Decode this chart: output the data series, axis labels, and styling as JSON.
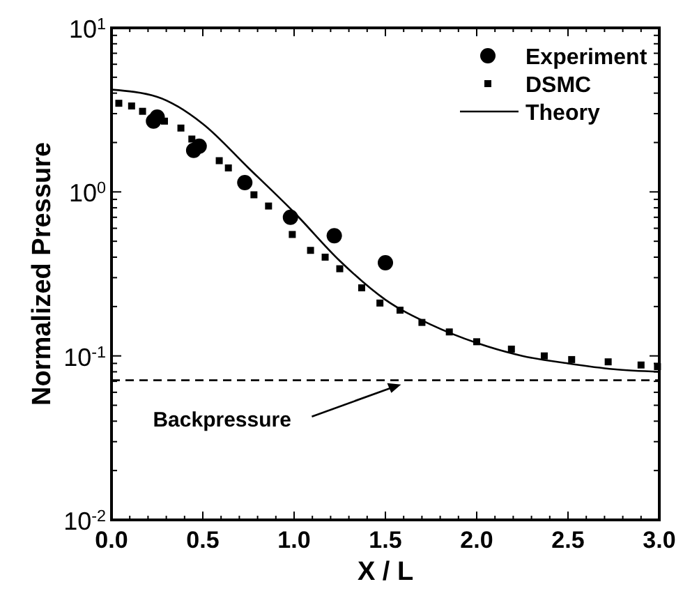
{
  "chart_data": {
    "type": "scatter",
    "xlabel": "X / L",
    "ylabel": "Normalized Pressure",
    "log": "y",
    "legend": "top right",
    "xlim": [
      0,
      3
    ],
    "ylim": [
      0.01,
      10
    ],
    "xticks": [
      {
        "value": 0,
        "label": "0.0"
      },
      {
        "value": 0.1,
        "label": null
      },
      {
        "value": 0.2,
        "label": null
      },
      {
        "value": 0.3,
        "label": null
      },
      {
        "value": 0.4,
        "label": null
      },
      {
        "value": 0.5,
        "label": "0.5"
      },
      {
        "value": 0.6,
        "label": null
      },
      {
        "value": 0.7,
        "label": null
      },
      {
        "value": 0.8,
        "label": null
      },
      {
        "value": 0.9,
        "label": null
      },
      {
        "value": 1,
        "label": "1.0"
      },
      {
        "value": 1.1,
        "label": null
      },
      {
        "value": 1.2,
        "label": null
      },
      {
        "value": 1.3,
        "label": null
      },
      {
        "value": 1.4,
        "label": null
      },
      {
        "value": 1.5,
        "label": "1.5"
      },
      {
        "value": 1.6,
        "label": null
      },
      {
        "value": 1.7,
        "label": null
      },
      {
        "value": 1.8,
        "label": null
      },
      {
        "value": 1.9,
        "label": null
      },
      {
        "value": 2,
        "label": "2.0"
      },
      {
        "value": 2.1,
        "label": null
      },
      {
        "value": 2.2,
        "label": null
      },
      {
        "value": 2.3,
        "label": null
      },
      {
        "value": 2.4,
        "label": null
      },
      {
        "value": 2.5,
        "label": "2.5"
      },
      {
        "value": 2.6,
        "label": null
      },
      {
        "value": 2.7,
        "label": null
      },
      {
        "value": 2.8,
        "label": null
      },
      {
        "value": 2.9,
        "label": null
      },
      {
        "value": 3,
        "label": "3.0"
      }
    ],
    "yticks": [
      {
        "value": 0.01,
        "label": "10$^{-2}$"
      },
      {
        "value": 0.02,
        "label": null
      },
      {
        "value": 0.03,
        "label": null
      },
      {
        "value": 0.04,
        "label": null
      },
      {
        "value": 0.05,
        "label": null
      },
      {
        "value": 0.06,
        "label": null
      },
      {
        "value": 0.07,
        "label": null
      },
      {
        "value": 0.08,
        "label": null
      },
      {
        "value": 0.09,
        "label": null
      },
      {
        "value": 0.1,
        "label": "10$^{-1}$"
      },
      {
        "value": 0.2,
        "label": null
      },
      {
        "value": 0.3,
        "label": null
      },
      {
        "value": 0.4,
        "label": null
      },
      {
        "value": 0.5,
        "label": null
      },
      {
        "value": 0.6,
        "label": null
      },
      {
        "value": 0.7,
        "label": null
      },
      {
        "value": 0.8,
        "label": null
      },
      {
        "value": 0.9,
        "label": null
      },
      {
        "value": 1,
        "label": "10$^{0}$"
      },
      {
        "value": 2,
        "label": null
      },
      {
        "value": 3,
        "label": null
      },
      {
        "value": 4,
        "label": null
      },
      {
        "value": 5,
        "label": null
      },
      {
        "value": 6,
        "label": null
      },
      {
        "value": 7,
        "label": null
      },
      {
        "value": 8,
        "label": null
      },
      {
        "value": 9,
        "label": null
      },
      {
        "value": 10,
        "label": "10$^{1}$"
      }
    ],
    "series": [
      {
        "name": "Experiment",
        "type": "scatter",
        "marker": "circle",
        "color": "#000000",
        "x": [
          0.23,
          0.25,
          0.45,
          0.48,
          0.73,
          0.98,
          1.22,
          1.5
        ],
        "values": [
          2.7,
          2.86,
          1.79,
          1.9,
          1.14,
          0.7,
          0.54,
          0.37
        ]
      },
      {
        "name": "DSMC",
        "type": "scatter",
        "marker": "square",
        "color": "#000000",
        "x": [
          0.04,
          0.11,
          0.17,
          0.29,
          0.38,
          0.44,
          0.59,
          0.64,
          0.78,
          0.86,
          0.99,
          1.09,
          1.17,
          1.25,
          1.37,
          1.47,
          1.58,
          1.7,
          1.85,
          2.0,
          2.19,
          2.37,
          2.52,
          2.72,
          2.9,
          2.99
        ],
        "values": [
          3.47,
          3.34,
          3.1,
          2.7,
          2.45,
          2.1,
          1.55,
          1.4,
          0.96,
          0.82,
          0.55,
          0.44,
          0.4,
          0.34,
          0.26,
          0.21,
          0.19,
          0.16,
          0.14,
          0.122,
          0.11,
          0.1,
          0.095,
          0.092,
          0.088,
          0.086
        ]
      },
      {
        "name": "Theory",
        "type": "line",
        "marker": "none",
        "line_style": "solid",
        "color": "#000000",
        "x": [
          0,
          0.25,
          0.5,
          0.75,
          1.0,
          1.25,
          1.5,
          1.75,
          2.0,
          2.25,
          2.5,
          2.75,
          3.0
        ],
        "values": [
          4.2,
          3.8,
          2.6,
          1.4,
          0.75,
          0.38,
          0.22,
          0.155,
          0.12,
          0.1,
          0.09,
          0.083,
          0.08
        ]
      }
    ],
    "ref_lines": [
      {
        "axis": "y",
        "value": 0.071,
        "label": "Backpressure",
        "line_style": "dashed",
        "color": "#000000"
      }
    ]
  }
}
